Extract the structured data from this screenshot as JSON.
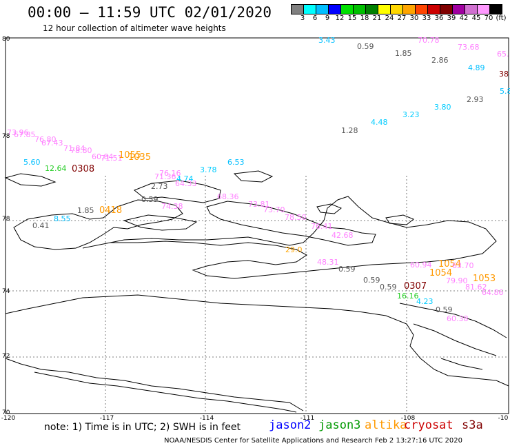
{
  "header": {
    "title": "00:00 – 11:59 UTC 02/01/2020",
    "subtitle": "12 hour collection of altimeter wave heights"
  },
  "colorbar": {
    "colors": [
      "#808080",
      "#00ffff",
      "#00bfff",
      "#0000ff",
      "#00e000",
      "#00c000",
      "#008000",
      "#ffff00",
      "#ffd700",
      "#ffa500",
      "#ff4500",
      "#cc0000",
      "#800000",
      "#a000a0",
      "#d070d0",
      "#ff99ff",
      "#000000"
    ],
    "labels": [
      "3",
      "6",
      "9",
      "12",
      "15",
      "18",
      "21",
      "24",
      "27",
      "30",
      "33",
      "36",
      "39",
      "42",
      "45",
      "70",
      "(ft)"
    ]
  },
  "axes": {
    "lat_labels": [
      "80",
      "78",
      "76",
      "74",
      "72",
      "70"
    ],
    "lon_labels": [
      "-120",
      "-117",
      "-114",
      "-111",
      "-108",
      "-10"
    ]
  },
  "waves": [
    {
      "text": "3.43",
      "color": "#00bfff"
    },
    {
      "text": "0.59",
      "color": "#555555"
    },
    {
      "text": "70.78",
      "color": "#ff80ff"
    },
    {
      "text": "1.85",
      "color": "#555555"
    },
    {
      "text": "73.68",
      "color": "#ff80ff"
    },
    {
      "text": "65.",
      "color": "#ff80ff"
    },
    {
      "text": "2.86",
      "color": "#555555"
    },
    {
      "text": "4.89",
      "color": "#00bfff"
    },
    {
      "text": "38",
      "color": "#800000"
    },
    {
      "text": "5.8",
      "color": "#00bfff"
    },
    {
      "text": "2.93",
      "color": "#555555"
    },
    {
      "text": "3.80",
      "color": "#00ccff"
    },
    {
      "text": "3.23",
      "color": "#00ccff"
    },
    {
      "text": "4.48",
      "color": "#00ccff"
    },
    {
      "text": "1.28",
      "color": "#555555"
    },
    {
      "text": "73.96",
      "color": "#ff80ff"
    },
    {
      "text": "67.85",
      "color": "#ff80ff"
    },
    {
      "text": "76.80",
      "color": "#ff80ff"
    },
    {
      "text": "67.43",
      "color": "#ff80ff"
    },
    {
      "text": "71.84",
      "color": "#ff80ff"
    },
    {
      "text": "78.80",
      "color": "#ff80ff"
    },
    {
      "text": "60.84",
      "color": "#ff80ff"
    },
    {
      "text": "71.51",
      "color": "#ff80ff"
    },
    {
      "text": "1055",
      "color": "#ff9900"
    },
    {
      "text": "1035",
      "color": "#ff9900"
    },
    {
      "text": "5.60",
      "color": "#00bfff"
    },
    {
      "text": "12.64",
      "color": "#22cc22"
    },
    {
      "text": "0308",
      "color": "#800000"
    },
    {
      "text": "76.16",
      "color": "#ff80ff"
    },
    {
      "text": "71.36",
      "color": "#ff80ff"
    },
    {
      "text": "3.78",
      "color": "#00ccff"
    },
    {
      "text": "6.53",
      "color": "#00bfff"
    },
    {
      "text": "4.74",
      "color": "#00ccff"
    },
    {
      "text": "64.33",
      "color": "#ff80ff"
    },
    {
      "text": "2.73",
      "color": "#555555"
    },
    {
      "text": "68.36",
      "color": "#ff80ff"
    },
    {
      "text": "0.59",
      "color": "#555555"
    },
    {
      "text": "74.38",
      "color": "#ff80ff"
    },
    {
      "text": "73.81",
      "color": "#ff80ff"
    },
    {
      "text": "1.85",
      "color": "#555555"
    },
    {
      "text": "0418",
      "color": "#ff9900"
    },
    {
      "text": "73.70",
      "color": "#ff80ff"
    },
    {
      "text": "78.50",
      "color": "#ff80ff"
    },
    {
      "text": "8.55",
      "color": "#00bfff"
    },
    {
      "text": "0.41",
      "color": "#555555"
    },
    {
      "text": "76.41",
      "color": "#ff80ff"
    },
    {
      "text": "42.68",
      "color": "#ff80ff"
    },
    {
      "text": "29.0",
      "color": "#ffa500"
    },
    {
      "text": "48.31",
      "color": "#ff80ff"
    },
    {
      "text": "0.59",
      "color": "#555555"
    },
    {
      "text": "60.94",
      "color": "#ff80ff"
    },
    {
      "text": "1054",
      "color": "#ff9900"
    },
    {
      "text": "1054",
      "color": "#ff9900"
    },
    {
      "text": "63.70",
      "color": "#ff80ff"
    },
    {
      "text": "1053",
      "color": "#ff9900"
    },
    {
      "text": "0.59",
      "color": "#555555"
    },
    {
      "text": "79.90",
      "color": "#ff80ff"
    },
    {
      "text": "81.62",
      "color": "#ff80ff"
    },
    {
      "text": "0.59",
      "color": "#555555"
    },
    {
      "text": "0307",
      "color": "#800000"
    },
    {
      "text": "16.16",
      "color": "#22cc22"
    },
    {
      "text": "64.86",
      "color": "#ff80ff"
    },
    {
      "text": "4.23",
      "color": "#00ccff"
    },
    {
      "text": "0.59",
      "color": "#555555"
    },
    {
      "text": "60.38",
      "color": "#ff80ff"
    }
  ],
  "footer": {
    "note": "note: 1) Time is in UTC; 2) SWH is in feet",
    "legend": [
      {
        "label": "jason2",
        "color": "#0000ff"
      },
      {
        "label": "jason3",
        "color": "#009900"
      },
      {
        "label": "altika",
        "color": "#ff9900"
      },
      {
        "label": "cryosat",
        "color": "#cc0000"
      },
      {
        "label": "s3a",
        "color": "#800000"
      }
    ],
    "credit": "NOAA/NESDIS Center for Satellite Applications and Research   Feb  2 13:27:16 UTC 2020"
  }
}
